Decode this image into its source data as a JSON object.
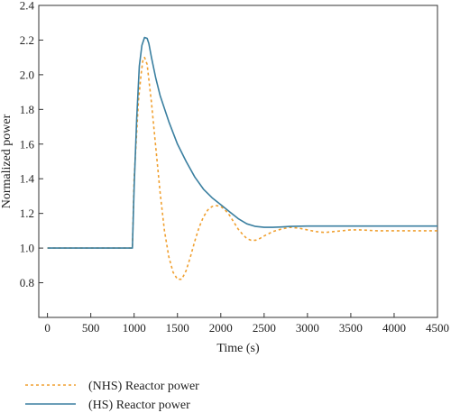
{
  "chart_data": {
    "type": "line",
    "title": "",
    "xlabel": "Time (s)",
    "ylabel": "Normalized power",
    "xlim": [
      -100,
      4500
    ],
    "ylim": [
      0.6,
      2.4
    ],
    "xticks": [
      0,
      500,
      1000,
      1500,
      2000,
      2500,
      3000,
      3500,
      4000,
      4500
    ],
    "yticks": [
      0.8,
      1.0,
      1.2,
      1.4,
      1.6,
      1.8,
      2.0,
      2.2,
      2.4
    ],
    "ytick_labels": [
      "0.8",
      "1.0",
      "1.2",
      "1.4",
      "1.6",
      "1.8",
      "2.0",
      "2.2",
      "2.4"
    ],
    "grid": false,
    "legend_position": "below",
    "series": [
      {
        "name": "(NHS) Reactor power",
        "color": "#f0a030",
        "style": "dashed",
        "x": [
          0,
          500,
          980,
          1000,
          1050,
          1080,
          1100,
          1120,
          1150,
          1200,
          1250,
          1300,
          1350,
          1400,
          1450,
          1500,
          1550,
          1600,
          1650,
          1700,
          1750,
          1800,
          1850,
          1900,
          1950,
          2000,
          2050,
          2100,
          2150,
          2200,
          2250,
          2300,
          2350,
          2400,
          2450,
          2500,
          2600,
          2700,
          2800,
          2900,
          3000,
          3100,
          3200,
          3300,
          3400,
          3500,
          3600,
          3800,
          4000,
          4200,
          4400,
          4500
        ],
        "values": [
          1.0,
          1.0,
          1.0,
          1.4,
          1.85,
          2.0,
          2.08,
          2.1,
          2.06,
          1.84,
          1.58,
          1.32,
          1.1,
          0.95,
          0.86,
          0.82,
          0.82,
          0.87,
          0.95,
          1.04,
          1.12,
          1.18,
          1.22,
          1.24,
          1.245,
          1.24,
          1.22,
          1.19,
          1.15,
          1.11,
          1.08,
          1.055,
          1.045,
          1.045,
          1.055,
          1.07,
          1.095,
          1.11,
          1.12,
          1.115,
          1.105,
          1.095,
          1.09,
          1.095,
          1.1,
          1.105,
          1.105,
          1.1,
          1.1,
          1.1,
          1.1,
          1.1
        ]
      },
      {
        "name": "(HS) Reactor power",
        "color": "#3a7fa0",
        "style": "solid",
        "x": [
          0,
          500,
          980,
          1000,
          1030,
          1060,
          1090,
          1120,
          1150,
          1170,
          1200,
          1250,
          1300,
          1400,
          1500,
          1600,
          1700,
          1800,
          1900,
          2000,
          2100,
          2200,
          2300,
          2400,
          2500,
          2600,
          2700,
          2800,
          3000,
          3500,
          4000,
          4500
        ],
        "values": [
          1.0,
          1.0,
          1.0,
          1.35,
          1.75,
          2.05,
          2.17,
          2.215,
          2.21,
          2.18,
          2.1,
          1.98,
          1.88,
          1.73,
          1.6,
          1.5,
          1.41,
          1.34,
          1.29,
          1.25,
          1.21,
          1.17,
          1.14,
          1.125,
          1.12,
          1.12,
          1.122,
          1.125,
          1.127,
          1.127,
          1.127,
          1.127
        ]
      }
    ]
  }
}
